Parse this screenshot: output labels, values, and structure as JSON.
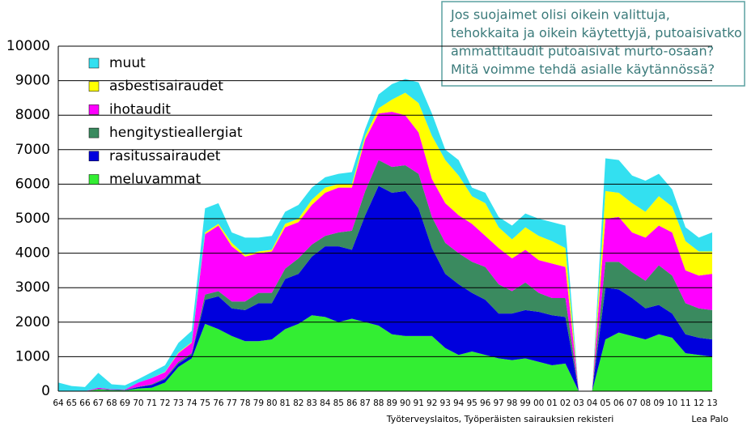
{
  "chart_data": {
    "type": "stacked-area",
    "categories": [
      "64",
      "65",
      "66",
      "67",
      "68",
      "69",
      "70",
      "71",
      "72",
      "73",
      "74",
      "75",
      "76",
      "77",
      "78",
      "79",
      "80",
      "81",
      "82",
      "83",
      "84",
      "85",
      "86",
      "87",
      "88",
      "89",
      "90",
      "91",
      "92",
      "93",
      "94",
      "95",
      "96",
      "97",
      "98",
      "99",
      "00",
      "01",
      "02",
      "03",
      "04",
      "05",
      "06",
      "07",
      "08",
      "09",
      "10",
      "11",
      "12",
      "13"
    ],
    "series": [
      {
        "name": "meluvammat",
        "color": "#33ee33",
        "values": [
          0,
          0,
          0,
          50,
          30,
          20,
          80,
          100,
          250,
          700,
          950,
          1950,
          1800,
          1600,
          1450,
          1450,
          1500,
          1800,
          1950,
          2200,
          2150,
          2000,
          2100,
          2000,
          1900,
          1650,
          1600,
          1600,
          1600,
          1250,
          1050,
          1150,
          1050,
          950,
          900,
          950,
          850,
          750,
          800,
          0,
          0,
          1500,
          1700,
          1600,
          1500,
          1650,
          1550,
          1100,
          1050,
          1000
        ]
      },
      {
        "name": "rasitussairaudet",
        "color": "#0000dd",
        "values": [
          0,
          0,
          0,
          10,
          10,
          10,
          40,
          80,
          100,
          100,
          100,
          700,
          950,
          800,
          900,
          1100,
          1050,
          1450,
          1450,
          1700,
          2050,
          2200,
          2000,
          3100,
          4050,
          4100,
          4200,
          3700,
          2550,
          2150,
          2050,
          1700,
          1600,
          1300,
          1350,
          1400,
          1450,
          1450,
          1350,
          0,
          0,
          1500,
          1250,
          1100,
          900,
          850,
          700,
          550,
          500,
          500
        ]
      },
      {
        "name": "hengitystieallergiat",
        "color": "#3a8a5f",
        "values": [
          0,
          0,
          0,
          10,
          10,
          10,
          10,
          20,
          30,
          50,
          50,
          150,
          150,
          200,
          250,
          300,
          300,
          300,
          450,
          350,
          300,
          400,
          550,
          700,
          750,
          750,
          750,
          1000,
          900,
          900,
          900,
          900,
          950,
          850,
          650,
          800,
          550,
          500,
          550,
          0,
          0,
          750,
          800,
          750,
          800,
          1150,
          1100,
          900,
          850,
          850
        ]
      },
      {
        "name": "ihotaudit",
        "color": "#ff00ff",
        "values": [
          0,
          0,
          0,
          30,
          10,
          10,
          120,
          180,
          170,
          250,
          300,
          1750,
          1900,
          1600,
          1300,
          1150,
          1200,
          1200,
          1050,
          1150,
          1250,
          1300,
          1250,
          1500,
          1350,
          1600,
          1450,
          1200,
          1100,
          1150,
          1100,
          1100,
          900,
          1050,
          950,
          950,
          950,
          1000,
          900,
          0,
          0,
          1250,
          1300,
          1150,
          1250,
          1150,
          1250,
          950,
          950,
          1050
        ]
      },
      {
        "name": "asbestisairaudet",
        "color": "#ffff00",
        "values": [
          0,
          0,
          0,
          0,
          0,
          0,
          0,
          0,
          10,
          20,
          20,
          50,
          50,
          100,
          50,
          50,
          50,
          100,
          100,
          150,
          150,
          100,
          100,
          100,
          150,
          350,
          650,
          850,
          1250,
          1250,
          1150,
          800,
          950,
          600,
          550,
          650,
          700,
          650,
          550,
          0,
          0,
          800,
          700,
          850,
          750,
          850,
          750,
          850,
          700,
          650
        ]
      },
      {
        "name": "muut",
        "color": "#33e0f0",
        "values": [
          250,
          150,
          120,
          430,
          140,
          120,
          100,
          170,
          190,
          280,
          330,
          700,
          600,
          300,
          500,
          400,
          400,
          350,
          400,
          350,
          300,
          300,
          350,
          200,
          400,
          450,
          400,
          600,
          650,
          300,
          450,
          250,
          300,
          300,
          400,
          400,
          500,
          550,
          650,
          0,
          0,
          950,
          950,
          800,
          900,
          650,
          500,
          400,
          400,
          550
        ]
      }
    ],
    "ylim": [
      0,
      10000
    ],
    "yticks": [
      0,
      1000,
      2000,
      3000,
      4000,
      5000,
      6000,
      7000,
      8000,
      9000,
      10000
    ],
    "grid": true,
    "legend": "upper-left",
    "annotation": [
      "Jos suojaimet olisi oikein valittuja,",
      "tehokkaita ja oikein käytettyjä, putoaisivatko",
      "ammattitaudit putoaisivat murto-osaan?",
      "Mitä voimme tehdä asialle käytännössä?"
    ],
    "source": "Työterveyslaitos, Työperäisten sairauksien rekisteri",
    "author": "Lea Palo"
  }
}
